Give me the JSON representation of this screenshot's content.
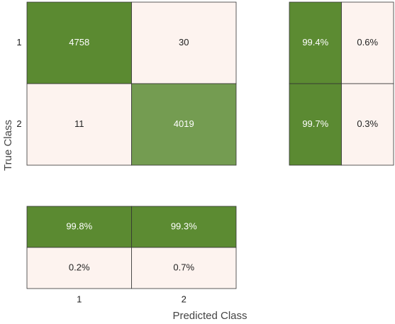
{
  "chart_data": {
    "type": "confusion_matrix",
    "categories": [
      "1",
      "2"
    ],
    "xlabel": "Predicted Class",
    "ylabel": "True Class",
    "matrix": [
      [
        4758,
        30
      ],
      [
        11,
        4019
      ]
    ],
    "row_summary": {
      "values": [
        [
          99.4,
          0.6
        ],
        [
          99.7,
          0.3
        ]
      ],
      "value_labels": [
        [
          "99.4%",
          "0.6%"
        ],
        [
          "99.7%",
          "0.3%"
        ]
      ]
    },
    "column_summary": {
      "values": [
        [
          99.8,
          99.3
        ],
        [
          0.2,
          0.7
        ]
      ],
      "value_labels": [
        [
          "99.8%",
          "99.3%"
        ],
        [
          "0.2%",
          "0.7%"
        ]
      ]
    },
    "colors": {
      "correct": "#5b8a31",
      "incorrect": "#fdf3ef"
    }
  }
}
